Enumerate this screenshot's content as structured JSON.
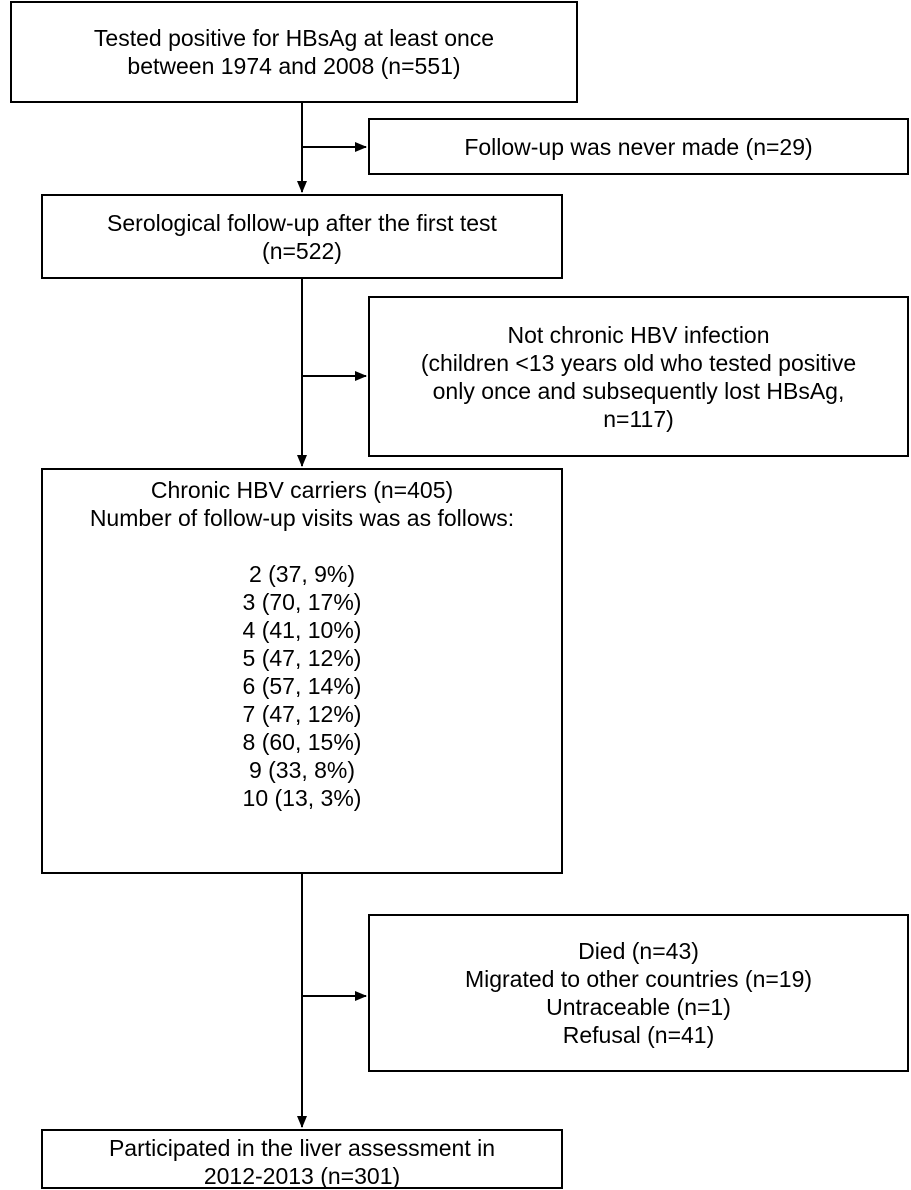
{
  "flowchart": {
    "boxes": {
      "tested_positive": {
        "lines": [
          "Tested positive for HBsAg at least once",
          "between 1974 and 2008 (n=551)"
        ]
      },
      "no_follow_up": {
        "lines": [
          "Follow-up was never made (n=29)"
        ]
      },
      "serological_follow_up": {
        "lines": [
          "Serological follow-up after the first test",
          "(n=522)"
        ]
      },
      "not_chronic": {
        "lines": [
          "Not chronic HBV infection",
          "(children <13 years old who tested positive",
          "only once and subsequently lost HBsAg,",
          "n=117)"
        ]
      },
      "chronic_carriers": {
        "lines": [
          "Chronic HBV carriers (n=405)",
          "Number of follow-up visits was as follows:"
        ],
        "visits": [
          "2 (37, 9%)",
          "3 (70, 17%)",
          "4 (41, 10%)",
          "5 (47, 12%)",
          "6 (57, 14%)",
          "7 (47, 12%)",
          "8 (60, 15%)",
          "9 (33, 8%)",
          "10 (13, 3%)"
        ]
      },
      "excluded": {
        "lines": [
          "Died (n=43)",
          "Migrated to other countries (n=19)",
          "Untraceable (n=1)",
          "Refusal (n=41)"
        ]
      },
      "participated": {
        "lines": [
          "Participated in the liver assessment in",
          "2012-2013 (n=301)"
        ]
      }
    }
  }
}
